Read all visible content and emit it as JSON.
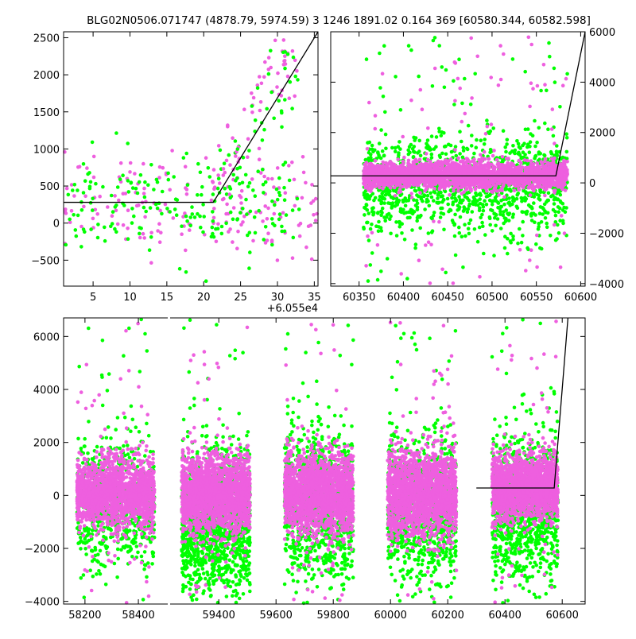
{
  "title": "BLG02N0506.071747 (4878.79, 5974.59)    3 1246 1891.02 0.164 369 [60580.344, 60582.598]",
  "colors": {
    "series_a": "#ee5fdf",
    "series_b": "#00ff00",
    "model": "#000000"
  },
  "chart_data": [
    {
      "panel": "top-left",
      "type": "scatter",
      "x_offset_label": "+6.055e4",
      "xlim": [
        1,
        35.5
      ],
      "ylim": [
        -850,
        2580
      ],
      "xticks": [
        5,
        10,
        15,
        20,
        25,
        30,
        35
      ],
      "yticks": [
        -500,
        0,
        500,
        1000,
        1500,
        2000,
        2500
      ],
      "ytick_side": "left",
      "series": [
        {
          "color_key": "series_a",
          "density": [
            [
              1,
              35.5,
              260,
              330,
              170
            ]
          ]
        },
        {
          "color_key": "series_b",
          "density": [
            [
              1,
              33,
              260,
              360,
              200
            ]
          ]
        }
      ],
      "rise": {
        "x_from": 21,
        "x_to": 33,
        "top": 2500
      },
      "model_line": {
        "x": [
          1,
          21.3,
          35.5
        ],
        "y": [
          280,
          280,
          2580
        ]
      }
    },
    {
      "panel": "top-right",
      "type": "scatter",
      "xlim": [
        60318,
        60605
      ],
      "ylim": [
        -4100,
        6000
      ],
      "xticks": [
        60350,
        60400,
        60450,
        60500,
        60550,
        60600
      ],
      "yticks": [
        -4000,
        -2000,
        0,
        2000,
        4000,
        6000
      ],
      "ytick_side": "right",
      "series": [
        {
          "color_key": "series_b",
          "density": [
            [
              60355,
              60585,
              -100,
              950,
              1200
            ]
          ]
        },
        {
          "color_key": "series_a",
          "density": [
            [
              60355,
              60585,
              300,
              260,
              2600
            ]
          ]
        }
      ],
      "model_line": {
        "x": [
          60318,
          60572,
          60605
        ],
        "y": [
          280,
          280,
          6000
        ]
      }
    },
    {
      "panel": "bottom",
      "type": "scatter",
      "ylim": [
        -4100,
        6700
      ],
      "yticks": [
        -4000,
        -2000,
        0,
        2000,
        4000,
        6000
      ],
      "segments": [
        {
          "xlim": [
            58120,
            58510
          ],
          "xticks": [
            58200,
            58400
          ]
        },
        {
          "xlim": [
            59230,
            60680
          ],
          "xticks": [
            59400,
            59600,
            59800,
            60000,
            60200,
            60400,
            60600
          ]
        }
      ],
      "series": [
        {
          "color_key": "series_b",
          "density": [
            [
              58170,
              58460,
              -300,
              1100,
              700
            ],
            [
              59270,
              59510,
              -1000,
              1300,
              1400
            ],
            [
              59630,
              59870,
              -400,
              1300,
              1000
            ],
            [
              59990,
              60230,
              -500,
              1300,
              1000
            ],
            [
              60355,
              60585,
              -400,
              1300,
              1100
            ]
          ]
        },
        {
          "color_key": "series_a",
          "density": [
            [
              58170,
              58460,
              80,
              650,
              1700
            ],
            [
              59270,
              59510,
              50,
              700,
              1900
            ],
            [
              59630,
              59870,
              50,
              750,
              1800
            ],
            [
              59990,
              60230,
              80,
              800,
              1800
            ],
            [
              60355,
              60585,
              300,
              600,
              1800
            ]
          ]
        }
      ],
      "model_line": {
        "x": [
          60300,
          60572,
          60620
        ],
        "y": [
          280,
          280,
          6700
        ]
      }
    }
  ]
}
